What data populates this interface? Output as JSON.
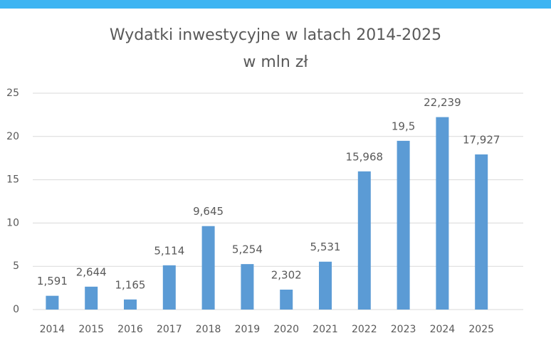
{
  "chart_data": {
    "type": "bar",
    "title": "Wydatki inwestycyjne w latach 2014-2025",
    "subtitle": "w mln zł",
    "categories": [
      "2014",
      "2015",
      "2016",
      "2017",
      "2018",
      "2019",
      "2020",
      "2021",
      "2022",
      "2023",
      "2024",
      "2025"
    ],
    "values": [
      1.591,
      2.644,
      1.165,
      5.114,
      9.645,
      5.254,
      2.302,
      5.531,
      15.968,
      19.5,
      22.239,
      17.927
    ],
    "value_labels": [
      "1,591",
      "2,644",
      "1,165",
      "5,114",
      "9,645",
      "5,254",
      "2,302",
      "5,531",
      "15,968",
      "19,5",
      "22,239",
      "17,927"
    ],
    "color": "#5b9bd5",
    "ylim": [
      0,
      25
    ],
    "yticks": [
      0,
      5,
      10,
      15,
      20,
      25
    ],
    "grid": true
  }
}
